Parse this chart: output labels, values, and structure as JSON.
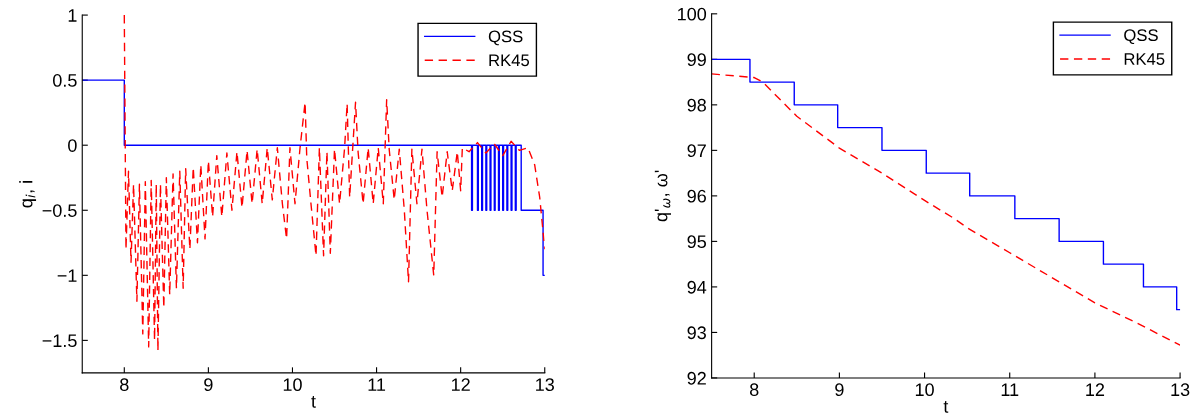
{
  "chart_data": [
    {
      "type": "line",
      "xlabel": "t",
      "ylabel": "q$_{i}$, i",
      "xlim": [
        7.5,
        13
      ],
      "xticks": [
        8,
        9,
        10,
        11,
        12,
        13
      ],
      "ylim": [
        -1.75,
        1
      ],
      "yticks": [
        -1.5,
        -1,
        -0.5,
        0,
        0.5,
        1
      ],
      "legend": "top right",
      "grid": false,
      "marker": "none",
      "series": [
        {
          "name": "QSS",
          "type": "step",
          "color": "#0000ff",
          "line_style": "solid",
          "x": [
            7.5,
            8.0,
            12.13,
            12.14,
            12.2,
            12.21,
            12.25,
            12.26,
            12.3,
            12.31,
            12.35,
            12.36,
            12.4,
            12.41,
            12.45,
            12.46,
            12.5,
            12.51,
            12.55,
            12.56,
            12.6,
            12.61,
            12.65,
            12.66,
            12.72,
            12.98,
            13.0
          ],
          "values": [
            0.5,
            0,
            -0.5,
            0,
            -0.5,
            0,
            -0.5,
            0,
            -0.5,
            0,
            -0.5,
            0,
            -0.5,
            0,
            -0.5,
            0,
            -0.5,
            0,
            -0.5,
            0,
            -0.5,
            0,
            -0.5,
            0,
            -0.5,
            -1,
            -1
          ]
        },
        {
          "name": "RK45",
          "color": "#ff0000",
          "line_style": "dashed",
          "x": [
            8.0,
            8.02,
            8.05,
            8.08,
            8.11,
            8.15,
            8.18,
            8.22,
            8.25,
            8.29,
            8.32,
            8.36,
            8.38,
            8.4,
            8.43,
            8.47,
            8.5,
            8.54,
            8.58,
            8.62,
            8.66,
            8.7,
            8.73,
            8.78,
            8.82,
            8.87,
            8.91,
            8.96,
            9.0,
            9.05,
            9.1,
            9.16,
            9.22,
            9.28,
            9.34,
            9.4,
            9.46,
            9.52,
            9.58,
            9.64,
            9.7,
            9.76,
            9.82,
            9.88,
            9.93,
            9.97,
            10.03,
            10.09,
            10.15,
            10.17,
            10.22,
            10.28,
            10.32,
            10.37,
            10.41,
            10.45,
            10.5,
            10.56,
            10.62,
            10.65,
            10.68,
            10.75,
            10.78,
            10.84,
            10.9,
            10.96,
            11.02,
            11.08,
            11.12,
            11.15,
            11.21,
            11.27,
            11.33,
            11.38,
            11.42,
            11.48,
            11.54,
            11.6,
            11.68,
            11.72,
            11.78,
            11.84,
            11.9,
            11.96,
            12.0,
            12.02,
            12.1,
            12.2,
            12.3,
            12.4,
            12.5,
            12.6,
            12.7,
            12.8,
            12.88,
            12.94,
            13.0
          ],
          "values": [
            1.0,
            -0.8,
            -0.2,
            -0.9,
            -0.3,
            -1.2,
            -0.3,
            -1.45,
            -0.28,
            -1.55,
            -0.27,
            -1.5,
            -0.3,
            -1.58,
            -0.3,
            -1.25,
            -0.25,
            -1.15,
            -0.22,
            -1.1,
            -0.2,
            -1.1,
            -0.18,
            -0.8,
            -0.17,
            -0.75,
            -0.15,
            -0.72,
            -0.12,
            -0.55,
            -0.08,
            -0.55,
            -0.06,
            -0.5,
            -0.05,
            -0.48,
            -0.04,
            -0.45,
            -0.03,
            -0.45,
            -0.02,
            -0.42,
            -0.02,
            -0.45,
            -0.72,
            -0.02,
            -0.45,
            -0.02,
            0.33,
            -0.1,
            -0.45,
            -0.85,
            -0.02,
            -0.85,
            -0.05,
            -0.83,
            -0.03,
            -0.45,
            -0.02,
            0.32,
            -0.4,
            0.33,
            -0.05,
            -0.45,
            -0.02,
            -0.45,
            -0.02,
            -0.45,
            0.35,
            -0.03,
            -0.42,
            -0.03,
            -0.5,
            -1.05,
            -0.03,
            -0.45,
            -0.03,
            -0.5,
            -1.0,
            -0.05,
            -0.4,
            -0.05,
            -0.35,
            -0.05,
            -0.35,
            -0.02,
            -0.05,
            0.02,
            -0.06,
            0.01,
            -0.08,
            0.03,
            -0.04,
            -0.02,
            -0.15,
            -0.4,
            -0.8
          ]
        }
      ]
    },
    {
      "type": "line",
      "xlabel": "t",
      "ylabel": "q'$_{ω}$, ω'",
      "xlim": [
        7.5,
        13
      ],
      "xticks": [
        8,
        9,
        10,
        11,
        12,
        13
      ],
      "ylim": [
        92,
        100
      ],
      "yticks": [
        92,
        93,
        94,
        95,
        96,
        97,
        98,
        99,
        100
      ],
      "legend": "top right",
      "grid": false,
      "marker": "none",
      "series": [
        {
          "name": "QSS",
          "type": "step",
          "color": "#0000ff",
          "line_style": "solid",
          "x": [
            7.5,
            7.95,
            8.47,
            8.98,
            9.5,
            10.02,
            10.53,
            11.06,
            11.58,
            12.1,
            12.57,
            12.96,
            13.0
          ],
          "values": [
            99,
            98.5,
            98,
            97.5,
            97,
            96.5,
            96,
            95.5,
            95,
            94.5,
            94,
            93.5,
            93.5
          ]
        },
        {
          "name": "RK45",
          "color": "#ff0000",
          "line_style": "dashed",
          "x": [
            7.5,
            8.0,
            8.1,
            8.5,
            9.0,
            9.5,
            10.0,
            10.35,
            10.5,
            11.0,
            11.5,
            12.0,
            12.5,
            13.0
          ],
          "values": [
            98.68,
            98.6,
            98.5,
            97.75,
            97.05,
            96.5,
            95.9,
            95.5,
            95.3,
            94.75,
            94.2,
            93.65,
            93.2,
            92.72
          ]
        }
      ]
    }
  ]
}
